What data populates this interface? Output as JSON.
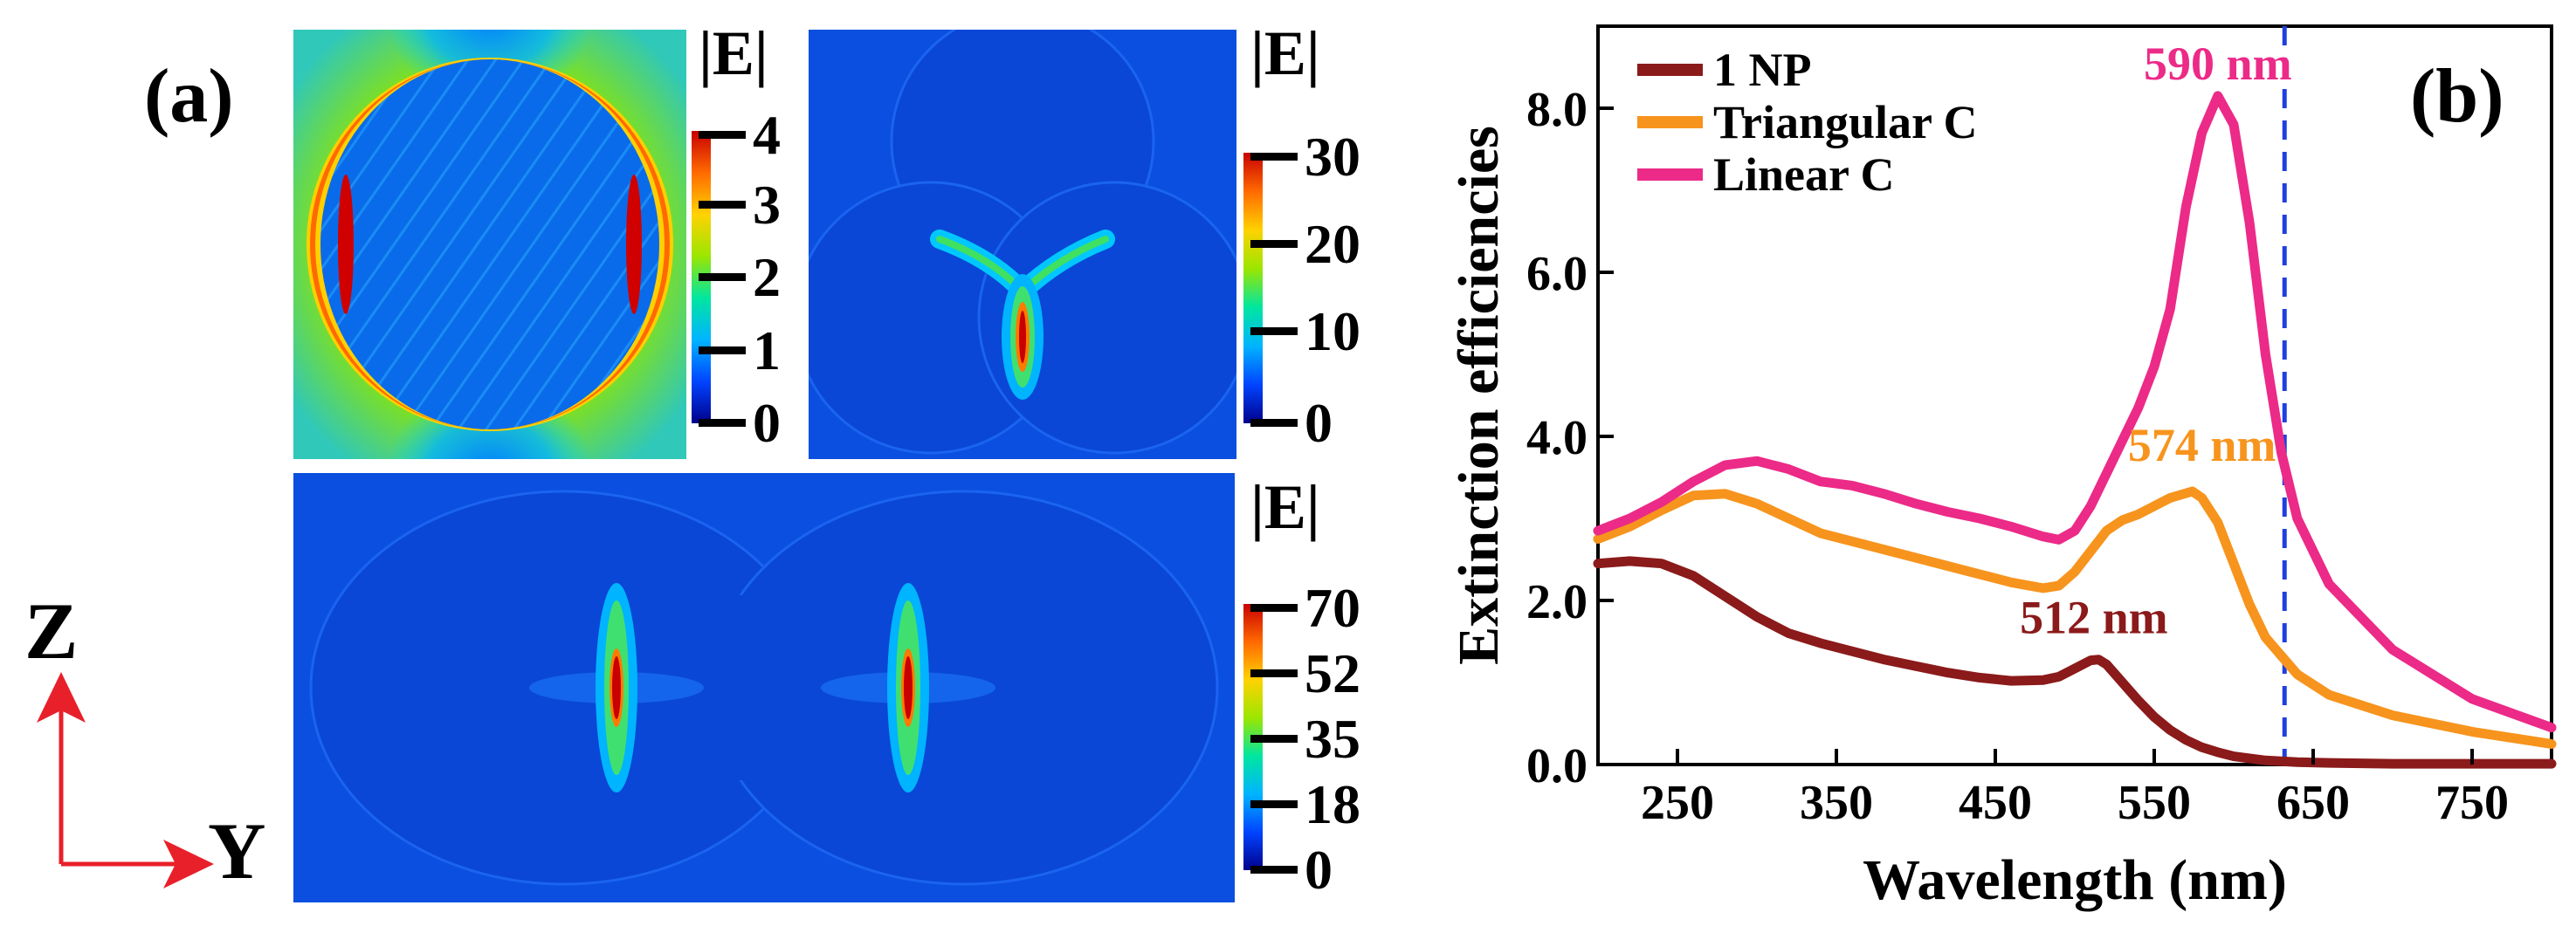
{
  "panel_a": {
    "label": "(a)",
    "axes": {
      "z_label": "Z",
      "y_label": "Y",
      "arrow_color": "#e8202a"
    },
    "maps": [
      {
        "name": "1 NP",
        "colorbar_title": "|E|",
        "ticks": [
          "4",
          "3",
          "2",
          "1",
          "0"
        ]
      },
      {
        "name": "Triangular C",
        "colorbar_title": "|E|",
        "ticks": [
          "30",
          "20",
          "10",
          "0"
        ]
      },
      {
        "name": "Linear C",
        "colorbar_title": "|E|",
        "ticks": [
          "70",
          "52",
          "35",
          "18",
          "0"
        ]
      }
    ],
    "colormap": [
      "#00008b",
      "#0044ff",
      "#00b4ff",
      "#00e6a0",
      "#9be600",
      "#ffd200",
      "#ff6a00",
      "#c80000"
    ]
  },
  "panel_b": {
    "label": "(b)"
  },
  "chart_data": {
    "type": "line",
    "xlabel": "Wavelength (nm)",
    "ylabel": "Extinction efficiencies",
    "xlim": [
      200,
      800
    ],
    "ylim": [
      0,
      9
    ],
    "xticks": [
      250,
      350,
      450,
      550,
      650,
      750
    ],
    "yticks": [
      0,
      2,
      4,
      6,
      8
    ],
    "ytick_labels": [
      "0.0",
      "2.0",
      "4.0",
      "6.0",
      "8.0"
    ],
    "grid": false,
    "legend_position": "top-left",
    "vline": {
      "x": 632,
      "color": "#1f3fe0",
      "style": "dashed"
    },
    "series": [
      {
        "name": "1 NP",
        "color": "#8b1a1a",
        "x": [
          200,
          220,
          240,
          260,
          280,
          300,
          320,
          340,
          360,
          380,
          400,
          420,
          440,
          460,
          480,
          490,
          500,
          510,
          515,
          520,
          530,
          540,
          550,
          560,
          570,
          580,
          590,
          600,
          620,
          640,
          660,
          700,
          750,
          800
        ],
        "y": [
          2.45,
          2.48,
          2.45,
          2.3,
          2.05,
          1.8,
          1.6,
          1.48,
          1.38,
          1.28,
          1.2,
          1.12,
          1.06,
          1.02,
          1.03,
          1.07,
          1.17,
          1.27,
          1.28,
          1.22,
          1.0,
          0.78,
          0.58,
          0.42,
          0.3,
          0.21,
          0.15,
          0.1,
          0.05,
          0.03,
          0.02,
          0.01,
          0.01,
          0.01
        ]
      },
      {
        "name": "Triangular C",
        "color": "#f7941d",
        "x": [
          200,
          220,
          240,
          260,
          280,
          300,
          320,
          340,
          360,
          380,
          400,
          420,
          440,
          460,
          480,
          490,
          500,
          510,
          520,
          530,
          540,
          550,
          560,
          574,
          580,
          590,
          600,
          610,
          620,
          640,
          660,
          700,
          750,
          800
        ],
        "y": [
          2.75,
          2.9,
          3.1,
          3.28,
          3.3,
          3.18,
          3.0,
          2.82,
          2.72,
          2.62,
          2.52,
          2.42,
          2.32,
          2.22,
          2.15,
          2.18,
          2.35,
          2.6,
          2.85,
          2.98,
          3.05,
          3.15,
          3.25,
          3.33,
          3.25,
          2.95,
          2.45,
          1.95,
          1.55,
          1.1,
          0.85,
          0.6,
          0.4,
          0.25
        ]
      },
      {
        "name": "Linear C",
        "color": "#ec2a88",
        "x": [
          200,
          220,
          240,
          260,
          280,
          300,
          320,
          340,
          360,
          380,
          400,
          420,
          440,
          460,
          480,
          490,
          500,
          510,
          520,
          530,
          540,
          550,
          560,
          570,
          580,
          590,
          600,
          610,
          620,
          630,
          640,
          660,
          700,
          750,
          800
        ],
        "y": [
          2.85,
          3.0,
          3.2,
          3.45,
          3.65,
          3.7,
          3.6,
          3.45,
          3.4,
          3.3,
          3.18,
          3.08,
          3.0,
          2.9,
          2.78,
          2.74,
          2.85,
          3.15,
          3.55,
          3.95,
          4.35,
          4.85,
          5.55,
          6.8,
          7.7,
          8.15,
          7.8,
          6.6,
          5.0,
          3.8,
          3.0,
          2.2,
          1.4,
          0.8,
          0.45
        ]
      }
    ],
    "annotations": [
      {
        "text": "590 nm",
        "x": 590,
        "y": 8.35,
        "color": "#ec2a88"
      },
      {
        "text": "574 nm",
        "x": 580,
        "y": 3.7,
        "color": "#f7941d"
      },
      {
        "text": "512 nm",
        "x": 512,
        "y": 1.6,
        "color": "#8b1a1a"
      }
    ]
  }
}
